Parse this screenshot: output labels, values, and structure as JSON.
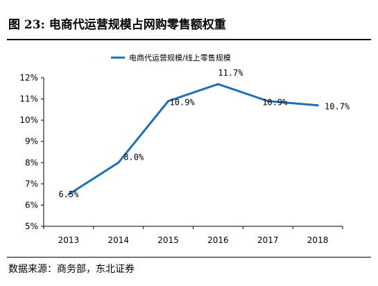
{
  "figure": {
    "title": "图 23:  电商代运营规模占网购零售额权重",
    "source": "数据来源：商务部，东北证券"
  },
  "colors": {
    "line": "#1f6fb5",
    "axis": "#000000"
  },
  "chart_data": {
    "type": "line",
    "title": "",
    "xlabel": "",
    "ylabel": "",
    "categories": [
      "2013",
      "2014",
      "2015",
      "2016",
      "2017",
      "2018"
    ],
    "series": [
      {
        "name": "电商代运营规模/线上零售规模",
        "values": [
          6.5,
          8.0,
          10.9,
          11.7,
          10.9,
          10.7
        ],
        "labels": [
          "6.5%",
          "8.0%",
          "10.9%",
          "11.7%",
          "10.9%",
          "10.7%"
        ]
      }
    ],
    "ylim": [
      5,
      12
    ],
    "yticks": [
      "5%",
      "6%",
      "7%",
      "8%",
      "9%",
      "10%",
      "11%",
      "12%"
    ],
    "grid": false,
    "legend": "top-center"
  }
}
